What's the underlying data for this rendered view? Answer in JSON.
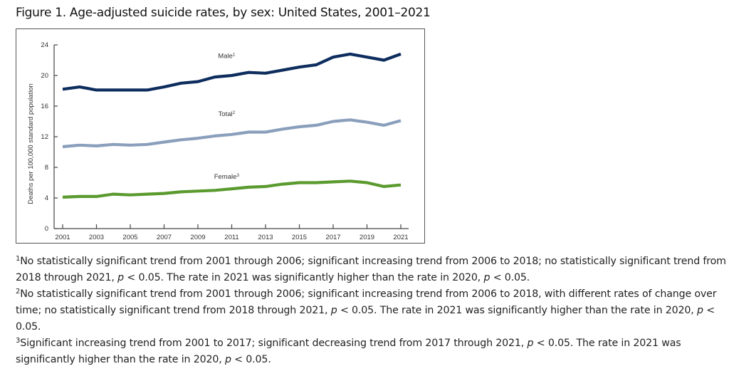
{
  "figure": {
    "title": "Figure 1. Age-adjusted suicide rates, by sex: United States, 2001–2021"
  },
  "chart_data": {
    "type": "line",
    "title": "Figure 1. Age-adjusted suicide rates, by sex: United States, 2001–2021",
    "xlabel": "",
    "ylabel": "Deaths per 100,000 standard population",
    "x": [
      2001,
      2002,
      2003,
      2004,
      2005,
      2006,
      2007,
      2008,
      2009,
      2010,
      2011,
      2012,
      2013,
      2014,
      2015,
      2016,
      2017,
      2018,
      2019,
      2020,
      2021
    ],
    "xticks": [
      "2001",
      "2003",
      "2005",
      "2007",
      "2009",
      "2011",
      "2013",
      "2015",
      "2017",
      "2019",
      "2021"
    ],
    "yticks": [
      "0",
      "4",
      "8",
      "12",
      "16",
      "20",
      "24"
    ],
    "ylim": [
      0,
      24
    ],
    "xlim": [
      2001,
      2021
    ],
    "grid": false,
    "legend": "inline-labels",
    "series": [
      {
        "name": "Male",
        "footnote": "1",
        "color": "#0d2d5e",
        "values": [
          18.2,
          18.5,
          18.1,
          18.1,
          18.1,
          18.1,
          18.5,
          19.0,
          19.2,
          19.8,
          20.0,
          20.4,
          20.3,
          20.7,
          21.1,
          21.4,
          22.4,
          22.8,
          22.4,
          22.0,
          22.8
        ]
      },
      {
        "name": "Total",
        "footnote": "2",
        "color": "#8a9fbc",
        "values": [
          10.7,
          10.9,
          10.8,
          11.0,
          10.9,
          11.0,
          11.3,
          11.6,
          11.8,
          12.1,
          12.3,
          12.6,
          12.6,
          13.0,
          13.3,
          13.5,
          14.0,
          14.2,
          13.9,
          13.5,
          14.1
        ]
      },
      {
        "name": "Female",
        "footnote": "3",
        "color": "#5a9a2e",
        "values": [
          4.1,
          4.2,
          4.2,
          4.5,
          4.4,
          4.5,
          4.6,
          4.8,
          4.9,
          5.0,
          5.2,
          5.4,
          5.5,
          5.8,
          6.0,
          6.0,
          6.1,
          6.2,
          6.0,
          5.5,
          5.7
        ]
      }
    ]
  },
  "footnotes": [
    {
      "marker": "1",
      "parts": [
        {
          "t": "No statistically significant trend from 2001 through 2006; significant increasing trend from 2006 to 2018; no statistically significant trend from 2018 through 2021, "
        },
        {
          "i": "p"
        },
        {
          "t": " < 0.05. The rate in 2021 was significantly higher than the rate in 2020, "
        },
        {
          "i": "p"
        },
        {
          "t": " < 0.05."
        }
      ]
    },
    {
      "marker": "2",
      "parts": [
        {
          "t": "No statistically significant trend from 2001 through 2006; significant increasing trend from 2006 to 2018, with different rates of change over time; no statistically significant trend from 2018 through 2021, "
        },
        {
          "i": "p"
        },
        {
          "t": " < 0.05. The rate in 2021 was significantly higher than the rate in 2020, "
        },
        {
          "i": "p"
        },
        {
          "t": " < 0.05."
        }
      ]
    },
    {
      "marker": "3",
      "parts": [
        {
          "t": "Significant increasing trend from 2001 to 2017; significant decreasing trend from 2017 through 2021, "
        },
        {
          "i": "p"
        },
        {
          "t": " < 0.05. The rate in 2021 was significantly higher than the rate in 2020, "
        },
        {
          "i": "p"
        },
        {
          "t": " < 0.05."
        }
      ]
    }
  ]
}
